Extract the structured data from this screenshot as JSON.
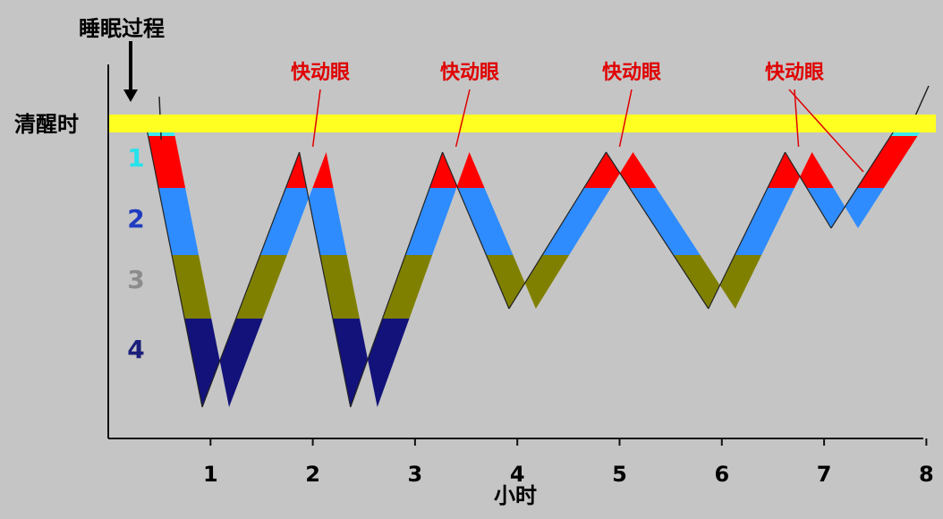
{
  "chart_data": {
    "type": "line",
    "title": "睡眠过程",
    "xlabel": "小时",
    "ylabel": "",
    "x_ticks": [
      "1",
      "2",
      "3",
      "4",
      "5",
      "6",
      "7",
      "8"
    ],
    "xlim": [
      0,
      8
    ],
    "y_axis_inverted": true,
    "wake_band_label": "清醒时",
    "stage_labels": [
      {
        "label": "1",
        "color": "#27e2ec"
      },
      {
        "label": "2",
        "color": "#1f3cc0"
      },
      {
        "label": "3",
        "color": "#8c8c8c"
      },
      {
        "label": "4",
        "color": "#1b1f7a"
      }
    ],
    "stage_colors": [
      "#ff0000",
      "#2e8cff",
      "#808000",
      "#12127a"
    ],
    "stage1_color": "#3fe6f0",
    "wake_band_color": "#ffff22",
    "rem_label": "快动眼",
    "rem_label_color": "#e00000",
    "series": [
      {
        "x": [
          0.5,
          1.05,
          2.0,
          2.5,
          3.4,
          4.05,
          5.0,
          6.0,
          6.75,
          7.2,
          7.85
        ],
        "y": [
          0,
          4,
          1,
          4,
          1,
          3,
          1,
          3,
          1,
          2,
          0
        ]
      }
    ],
    "rem_peaks_hours": [
      2.0,
      3.4,
      5.0,
      6.75
    ]
  }
}
